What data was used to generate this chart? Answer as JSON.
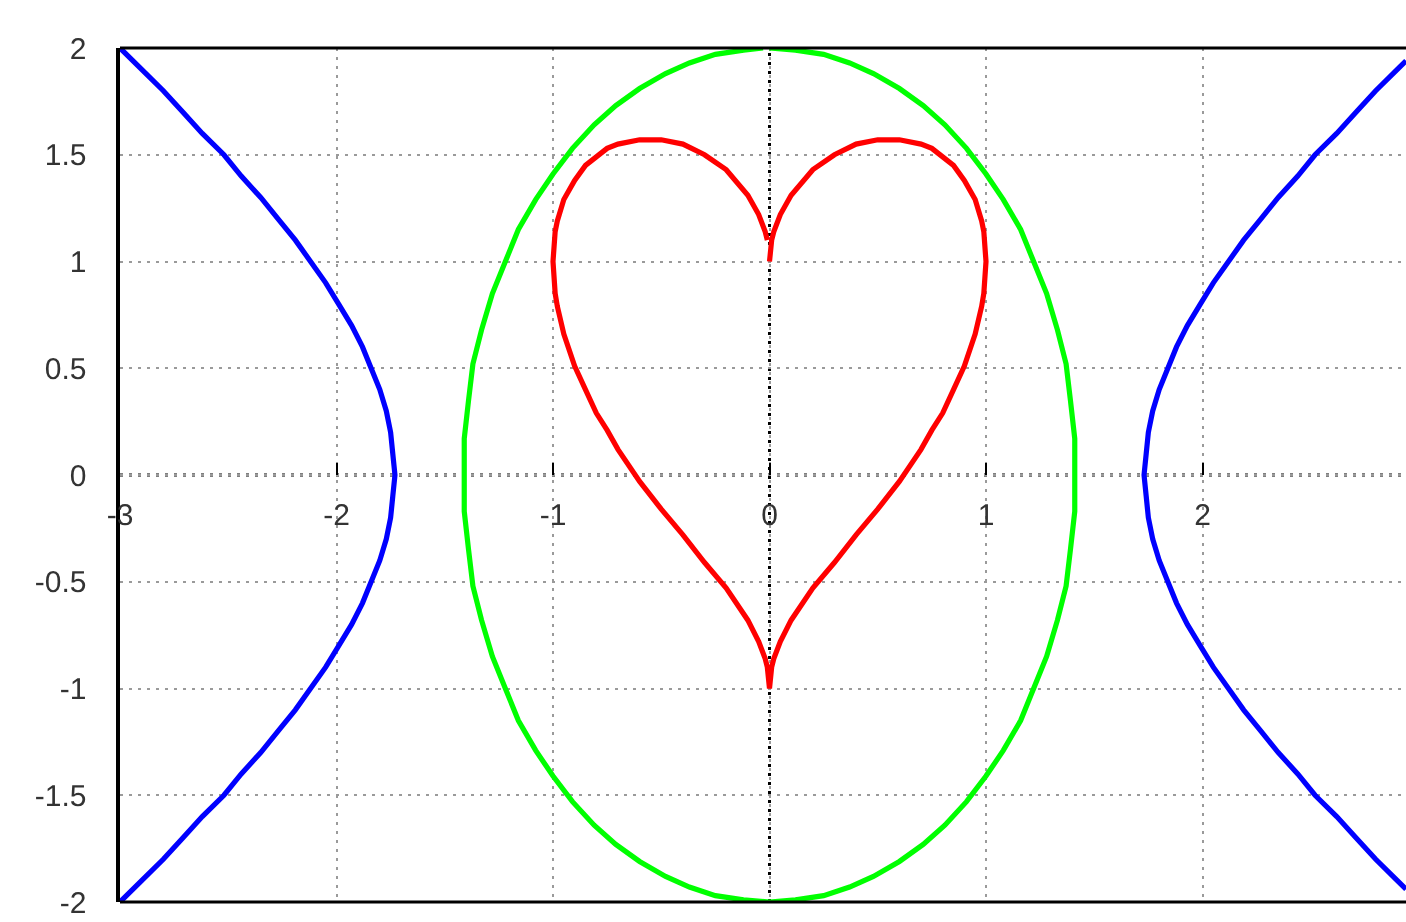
{
  "chart_data": {
    "type": "line",
    "xlim": [
      -3,
      2.94
    ],
    "ylim": [
      -2,
      2
    ],
    "xticks": [
      -3,
      -2,
      -1,
      0,
      1,
      2
    ],
    "yticks": [
      -2,
      -1.5,
      -1,
      -0.5,
      0,
      0.5,
      1,
      1.5,
      2
    ],
    "grid": true,
    "line_style": "solid",
    "series": [
      {
        "color": "#0000ff",
        "x": [
          -3.0,
          -2.9,
          -2.8,
          -2.71,
          -2.62,
          -2.52,
          -2.44,
          -2.35,
          -2.27,
          -2.19,
          -2.12,
          -2.05,
          -1.99,
          -1.93,
          -1.88,
          -1.84,
          -1.8,
          -1.77,
          -1.75,
          -1.74,
          -1.73,
          -1.74,
          -1.75,
          -1.77,
          -1.8,
          -1.84,
          -1.88,
          -1.93,
          -1.99,
          -2.05,
          -2.12,
          -2.19,
          -2.27,
          -2.35,
          -2.44,
          -2.52,
          -2.62,
          -2.71,
          -2.8,
          -2.9,
          -3.0
        ],
        "values": [
          2.0,
          1.9,
          1.8,
          1.7,
          1.6,
          1.5,
          1.4,
          1.3,
          1.2,
          1.1,
          1.0,
          0.9,
          0.8,
          0.7,
          0.6,
          0.5,
          0.4,
          0.3,
          0.2,
          0.1,
          0.0,
          -0.1,
          -0.2,
          -0.3,
          -0.4,
          -0.5,
          -0.6,
          -0.7,
          -0.8,
          -0.9,
          -1.0,
          -1.1,
          -1.2,
          -1.3,
          -1.4,
          -1.5,
          -1.6,
          -1.7,
          -1.8,
          -1.9,
          -2.0
        ]
      },
      {
        "color": "#0000ff",
        "x": [
          2.94,
          2.9,
          2.8,
          2.71,
          2.62,
          2.52,
          2.44,
          2.35,
          2.27,
          2.19,
          2.12,
          2.05,
          1.99,
          1.93,
          1.88,
          1.84,
          1.8,
          1.77,
          1.75,
          1.74,
          1.73,
          1.74,
          1.75,
          1.77,
          1.8,
          1.84,
          1.88,
          1.93,
          1.99,
          2.05,
          2.12,
          2.19,
          2.27,
          2.35,
          2.44,
          2.52,
          2.62,
          2.71,
          2.8,
          2.9,
          2.94
        ],
        "values": [
          1.94,
          1.9,
          1.8,
          1.7,
          1.6,
          1.5,
          1.4,
          1.3,
          1.2,
          1.1,
          1.0,
          0.9,
          0.8,
          0.7,
          0.6,
          0.5,
          0.4,
          0.3,
          0.2,
          0.1,
          0.0,
          -0.1,
          -0.2,
          -0.3,
          -0.4,
          -0.5,
          -0.6,
          -0.7,
          -0.8,
          -0.9,
          -1.0,
          -1.1,
          -1.2,
          -1.3,
          -1.4,
          -1.5,
          -1.6,
          -1.7,
          -1.8,
          -1.9,
          -1.94
        ]
      },
      {
        "color": "#00ff00",
        "x": [
          0.0,
          0.12,
          0.25,
          0.37,
          0.48,
          0.6,
          0.71,
          0.81,
          0.91,
          1.0,
          1.08,
          1.16,
          1.22,
          1.28,
          1.33,
          1.37,
          1.39,
          1.41,
          1.41,
          1.41,
          1.39,
          1.37,
          1.33,
          1.28,
          1.22,
          1.16,
          1.08,
          1.0,
          0.91,
          0.81,
          0.71,
          0.6,
          0.48,
          0.37,
          0.25,
          0.12,
          0.0,
          -0.12,
          -0.25,
          -0.37,
          -0.48,
          -0.6,
          -0.71,
          -0.81,
          -0.91,
          -1.0,
          -1.08,
          -1.16,
          -1.22,
          -1.28,
          -1.33,
          -1.37,
          -1.39,
          -1.41,
          -1.41,
          -1.41,
          -1.39,
          -1.37,
          -1.33,
          -1.28,
          -1.22,
          -1.16,
          -1.08,
          -1.0,
          -0.91,
          -0.81,
          -0.71,
          -0.6,
          -0.48,
          -0.37,
          -0.25,
          -0.12,
          -0.03
        ],
        "values": [
          2.0,
          1.99,
          1.97,
          1.93,
          1.88,
          1.81,
          1.73,
          1.64,
          1.53,
          1.41,
          1.29,
          1.15,
          1.0,
          0.85,
          0.68,
          0.52,
          0.35,
          0.17,
          0.0,
          -0.17,
          -0.35,
          -0.52,
          -0.68,
          -0.85,
          -1.0,
          -1.15,
          -1.29,
          -1.41,
          -1.53,
          -1.64,
          -1.73,
          -1.81,
          -1.88,
          -1.93,
          -1.97,
          -1.99,
          -2.0,
          -1.99,
          -1.97,
          -1.93,
          -1.88,
          -1.81,
          -1.73,
          -1.64,
          -1.53,
          -1.41,
          -1.29,
          -1.15,
          -1.0,
          -0.85,
          -0.68,
          -0.52,
          -0.35,
          -0.17,
          0.0,
          0.17,
          0.35,
          0.52,
          0.68,
          0.85,
          1.0,
          1.15,
          1.29,
          1.41,
          1.53,
          1.64,
          1.73,
          1.81,
          1.88,
          1.93,
          1.97,
          1.99,
          2.0
        ]
      },
      {
        "color": "#ff0000",
        "x": [
          0,
          0.01,
          0.02,
          0.05,
          0.1,
          0.2,
          0.3,
          0.4,
          0.5,
          0.6,
          0.7,
          0.75,
          0.8,
          0.85,
          0.9,
          0.95,
          0.98,
          0.99,
          1,
          0.99,
          0.98,
          0.95,
          0.9,
          0.85,
          0.8,
          0.75,
          0.7,
          0.6,
          0.5,
          0.4,
          0.3,
          0.2,
          0.1,
          0.05,
          0.02,
          0.01,
          0,
          -0.01,
          -0.02,
          -0.05,
          -0.1,
          -0.2,
          -0.3,
          -0.4,
          -0.5,
          -0.6,
          -0.7,
          -0.75,
          -0.8,
          -0.85,
          -0.9,
          -0.95,
          -0.98,
          -0.99,
          -1,
          -0.99,
          -0.98,
          -0.95,
          -0.9,
          -0.85,
          -0.8,
          -0.75,
          -0.7,
          -0.6,
          -0.5,
          -0.4,
          -0.3,
          -0.2,
          -0.1,
          -0.05,
          -0.02,
          -0.01
        ],
        "values": [
          1.0,
          1.1,
          1.14,
          1.22,
          1.31,
          1.43,
          1.5,
          1.55,
          1.57,
          1.57,
          1.55,
          1.53,
          1.49,
          1.45,
          1.38,
          1.29,
          1.19,
          1.14,
          1.0,
          0.85,
          0.79,
          0.66,
          0.51,
          0.4,
          0.29,
          0.21,
          0.12,
          -0.03,
          -0.16,
          -0.28,
          -0.41,
          -0.53,
          -0.68,
          -0.78,
          -0.86,
          -0.9,
          -1.0,
          -0.9,
          -0.86,
          -0.78,
          -0.68,
          -0.53,
          -0.41,
          -0.28,
          -0.16,
          -0.03,
          0.12,
          0.21,
          0.29,
          0.4,
          0.51,
          0.66,
          0.79,
          0.85,
          1.0,
          1.14,
          1.19,
          1.29,
          1.38,
          1.45,
          1.49,
          1.53,
          1.55,
          1.57,
          1.57,
          1.55,
          1.5,
          1.43,
          1.31,
          1.22,
          1.14,
          1.1
        ]
      }
    ]
  }
}
